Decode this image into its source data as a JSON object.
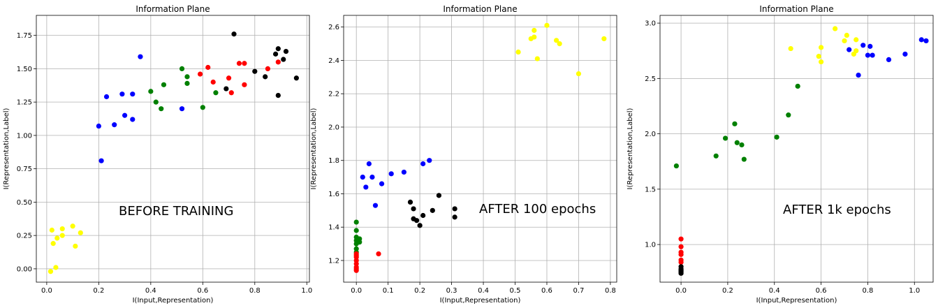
{
  "chart_data": [
    {
      "type": "scatter",
      "title": "Information Plane",
      "xlabel": "I(Input,Representation)",
      "ylabel": "I(Representation,Label)",
      "annotation": "BEFORE TRAINING",
      "xlim": [
        -0.04,
        1.01
      ],
      "ylim": [
        -0.1,
        1.9
      ],
      "xticks": [
        0.0,
        0.2,
        0.4,
        0.6,
        0.8,
        1.0
      ],
      "xtick_labels": [
        "0.0",
        "0.2",
        "0.4",
        "0.6",
        "0.8",
        "1.0"
      ],
      "yticks": [
        0.0,
        0.25,
        0.5,
        0.75,
        1.0,
        1.25,
        1.5,
        1.75
      ],
      "ytick_labels": [
        "0.00",
        "0.25",
        "0.50",
        "0.75",
        "1.00",
        "1.25",
        "1.50",
        "1.75"
      ],
      "grid": true,
      "series": [
        {
          "color": "#ffff00",
          "points": [
            [
              0.02,
              0.29
            ],
            [
              0.025,
              0.19
            ],
            [
              0.015,
              -0.02
            ],
            [
              0.035,
              0.01
            ],
            [
              0.04,
              0.23
            ],
            [
              0.06,
              0.3
            ],
            [
              0.06,
              0.25
            ],
            [
              0.1,
              0.32
            ],
            [
              0.11,
              0.17
            ],
            [
              0.13,
              0.27
            ]
          ]
        },
        {
          "color": "#0000ff",
          "points": [
            [
              0.2,
              1.07
            ],
            [
              0.21,
              0.81
            ],
            [
              0.23,
              1.29
            ],
            [
              0.26,
              1.08
            ],
            [
              0.29,
              1.31
            ],
            [
              0.3,
              1.15
            ],
            [
              0.33,
              1.12
            ],
            [
              0.33,
              1.31
            ],
            [
              0.36,
              1.59
            ],
            [
              0.52,
              1.2
            ]
          ]
        },
        {
          "color": "#008000",
          "points": [
            [
              0.4,
              1.33
            ],
            [
              0.42,
              1.25
            ],
            [
              0.44,
              1.2
            ],
            [
              0.45,
              1.38
            ],
            [
              0.52,
              1.5
            ],
            [
              0.54,
              1.39
            ],
            [
              0.54,
              1.44
            ],
            [
              0.6,
              1.21
            ],
            [
              0.65,
              1.32
            ]
          ]
        },
        {
          "color": "#ff0000",
          "points": [
            [
              0.59,
              1.46
            ],
            [
              0.62,
              1.51
            ],
            [
              0.64,
              1.4
            ],
            [
              0.7,
              1.43
            ],
            [
              0.71,
              1.32
            ],
            [
              0.74,
              1.54
            ],
            [
              0.76,
              1.54
            ],
            [
              0.76,
              1.38
            ],
            [
              0.85,
              1.5
            ],
            [
              0.89,
              1.55
            ]
          ]
        },
        {
          "color": "#000000",
          "points": [
            [
              0.69,
              1.35
            ],
            [
              0.72,
              1.76
            ],
            [
              0.8,
              1.48
            ],
            [
              0.84,
              1.44
            ],
            [
              0.88,
              1.61
            ],
            [
              0.89,
              1.65
            ],
            [
              0.89,
              1.3
            ],
            [
              0.91,
              1.57
            ],
            [
              0.92,
              1.63
            ],
            [
              0.96,
              1.43
            ]
          ]
        }
      ]
    },
    {
      "type": "scatter",
      "title": "Information Plane",
      "xlabel": "I(Input,Representation)",
      "ylabel": "I(Representation,Label)",
      "annotation": "AFTER 100 epochs",
      "xlim": [
        -0.04,
        0.82
      ],
      "ylim": [
        1.07,
        2.67
      ],
      "xticks": [
        0.0,
        0.1,
        0.2,
        0.3,
        0.4,
        0.5,
        0.6,
        0.7,
        0.8
      ],
      "xtick_labels": [
        "0.0",
        "0.1",
        "0.2",
        "0.3",
        "0.4",
        "0.5",
        "0.6",
        "0.7",
        "0.8"
      ],
      "yticks": [
        1.2,
        1.4,
        1.6,
        1.8,
        2.0,
        2.2,
        2.4,
        2.6
      ],
      "ytick_labels": [
        "1.2",
        "1.4",
        "1.6",
        "1.8",
        "2.0",
        "2.2",
        "2.4",
        "2.6"
      ],
      "grid": true,
      "series": [
        {
          "color": "#ffff00",
          "points": [
            [
              0.51,
              2.45
            ],
            [
              0.55,
              2.53
            ],
            [
              0.56,
              2.58
            ],
            [
              0.56,
              2.54
            ],
            [
              0.57,
              2.41
            ],
            [
              0.6,
              2.61
            ],
            [
              0.63,
              2.52
            ],
            [
              0.64,
              2.5
            ],
            [
              0.7,
              2.32
            ],
            [
              0.78,
              2.53
            ]
          ]
        },
        {
          "color": "#0000ff",
          "points": [
            [
              0.02,
              1.7
            ],
            [
              0.03,
              1.64
            ],
            [
              0.04,
              1.78
            ],
            [
              0.05,
              1.7
            ],
            [
              0.06,
              1.53
            ],
            [
              0.08,
              1.66
            ],
            [
              0.11,
              1.72
            ],
            [
              0.15,
              1.73
            ],
            [
              0.21,
              1.78
            ],
            [
              0.23,
              1.8
            ]
          ]
        },
        {
          "color": "#000000",
          "points": [
            [
              0.17,
              1.55
            ],
            [
              0.18,
              1.51
            ],
            [
              0.18,
              1.45
            ],
            [
              0.19,
              1.44
            ],
            [
              0.2,
              1.41
            ],
            [
              0.21,
              1.47
            ],
            [
              0.24,
              1.5
            ],
            [
              0.26,
              1.59
            ],
            [
              0.31,
              1.51
            ],
            [
              0.31,
              1.46
            ]
          ]
        },
        {
          "color": "#008000",
          "points": [
            [
              0.0,
              1.43
            ],
            [
              0.0,
              1.38
            ],
            [
              0.0,
              1.34
            ],
            [
              0.0,
              1.3
            ],
            [
              0.0,
              1.27
            ],
            [
              0.0,
              1.32
            ],
            [
              0.01,
              1.31
            ],
            [
              0.01,
              1.33
            ],
            [
              0.0,
              1.25
            ]
          ]
        },
        {
          "color": "#ff0000",
          "points": [
            [
              0.0,
              1.24
            ],
            [
              0.0,
              1.22
            ],
            [
              0.0,
              1.2
            ],
            [
              0.0,
              1.18
            ],
            [
              0.0,
              1.16
            ],
            [
              0.0,
              1.15
            ],
            [
              0.0,
              1.14
            ],
            [
              0.0,
              1.23
            ],
            [
              0.07,
              1.24
            ]
          ]
        }
      ]
    },
    {
      "type": "scatter",
      "title": "Information Plane",
      "xlabel": "I(Input,Representation)",
      "ylabel": "I(Representation,Label)",
      "annotation": "AFTER 1k epochs",
      "xlim": [
        -0.09,
        1.08
      ],
      "ylim": [
        0.66,
        3.07
      ],
      "xticks": [
        0.0,
        0.2,
        0.4,
        0.6,
        0.8,
        1.0
      ],
      "xtick_labels": [
        "0.0",
        "0.2",
        "0.4",
        "0.6",
        "0.8",
        "1.0"
      ],
      "yticks": [
        1.0,
        1.5,
        2.0,
        2.5,
        3.0
      ],
      "ytick_labels": [
        "1.0",
        "1.5",
        "2.0",
        "2.5",
        "3.0"
      ],
      "grid": true,
      "series": [
        {
          "color": "#ffff00",
          "points": [
            [
              0.47,
              2.77
            ],
            [
              0.59,
              2.7
            ],
            [
              0.6,
              2.78
            ],
            [
              0.6,
              2.65
            ],
            [
              0.66,
              2.95
            ],
            [
              0.7,
              2.84
            ],
            [
              0.71,
              2.89
            ],
            [
              0.74,
              2.72
            ],
            [
              0.75,
              2.75
            ],
            [
              0.75,
              2.85
            ]
          ]
        },
        {
          "color": "#0000ff",
          "points": [
            [
              0.72,
              2.76
            ],
            [
              0.76,
              2.53
            ],
            [
              0.78,
              2.8
            ],
            [
              0.8,
              2.71
            ],
            [
              0.81,
              2.79
            ],
            [
              0.82,
              2.71
            ],
            [
              0.89,
              2.67
            ],
            [
              0.96,
              2.72
            ],
            [
              1.03,
              2.85
            ],
            [
              1.05,
              2.84
            ]
          ]
        },
        {
          "color": "#008000",
          "points": [
            [
              -0.02,
              1.71
            ],
            [
              0.15,
              1.8
            ],
            [
              0.19,
              1.96
            ],
            [
              0.23,
              2.09
            ],
            [
              0.24,
              1.92
            ],
            [
              0.26,
              1.9
            ],
            [
              0.27,
              1.77
            ],
            [
              0.41,
              1.97
            ],
            [
              0.46,
              2.17
            ],
            [
              0.5,
              2.43
            ]
          ]
        },
        {
          "color": "#ff0000",
          "points": [
            [
              0.0,
              1.05
            ],
            [
              0.0,
              0.98
            ],
            [
              0.0,
              0.93
            ],
            [
              0.0,
              0.91
            ],
            [
              0.0,
              0.86
            ],
            [
              0.0,
              0.84
            ]
          ]
        },
        {
          "color": "#000000",
          "points": [
            [
              0.0,
              0.8
            ],
            [
              0.0,
              0.78
            ],
            [
              0.0,
              0.77
            ],
            [
              0.0,
              0.76
            ],
            [
              0.0,
              0.75
            ],
            [
              0.0,
              0.74
            ]
          ]
        }
      ]
    }
  ]
}
